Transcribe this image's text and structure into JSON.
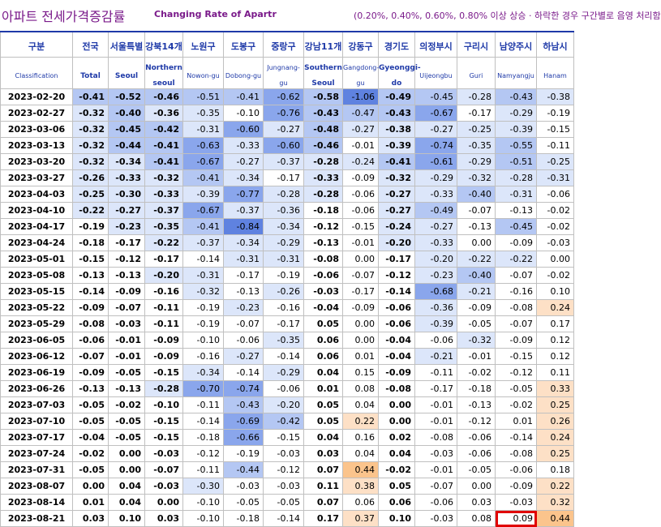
{
  "title": {
    "korean": "아파트 전세가격증감률",
    "english": "Changing Rate of Apartr",
    "note": "(0.20%, 0.40%, 0.60%, 0.80% 이상 상승 · 하락한 경우 구간별로 음영 처리함"
  },
  "header": {
    "row_label_ko": "구분",
    "row_label_en": "Classification",
    "columns": [
      {
        "ko": "전국",
        "en": "Total"
      },
      {
        "ko": "서울특별",
        "en": "Seoul"
      },
      {
        "ko": "강북14개",
        "en": "Northern seoul"
      },
      {
        "ko": "노원구",
        "en": "Nowon-gu"
      },
      {
        "ko": "도봉구",
        "en": "Dobong-gu"
      },
      {
        "ko": "중랑구",
        "en": "Jungnang-gu"
      },
      {
        "ko": "강남11개",
        "en": "Southern Seoul"
      },
      {
        "ko": "강동구",
        "en": "Gangdong-gu"
      },
      {
        "ko": "경기도",
        "en": "Gyeonggi-do"
      },
      {
        "ko": "의정부시",
        "en": "Uijeongbu"
      },
      {
        "ko": "구리시",
        "en": "Guri"
      },
      {
        "ko": "남양주시",
        "en": "Namyangju"
      },
      {
        "ko": "하남시",
        "en": "Hanam"
      }
    ]
  },
  "shading_colors": {
    "neg_080": "#5f82e0",
    "neg_060": "#8aa6ec",
    "neg_040": "#b4c7f3",
    "neg_020": "#dce6fa",
    "pos_020": "#fde0c6",
    "pos_040": "#fbc48c",
    "pos_060": "#f8a050",
    "highlight_border": "#e00000"
  },
  "rows": [
    {
      "date": "2023-02-20",
      "values": [
        "-0.41",
        "-0.52",
        "-0.46",
        "-0.51",
        "-0.41",
        "-0.62",
        "-0.58",
        "-1.06",
        "-0.49",
        "-0.45",
        "-0.28",
        "-0.43",
        "-0.38"
      ]
    },
    {
      "date": "2023-02-27",
      "values": [
        "-0.32",
        "-0.40",
        "-0.36",
        "-0.35",
        "-0.10",
        "-0.76",
        "-0.43",
        "-0.47",
        "-0.43",
        "-0.67",
        "-0.17",
        "-0.29",
        "-0.19"
      ]
    },
    {
      "date": "2023-03-06",
      "values": [
        "-0.32",
        "-0.45",
        "-0.42",
        "-0.31",
        "-0.60",
        "-0.27",
        "-0.48",
        "-0.27",
        "-0.38",
        "-0.27",
        "-0.25",
        "-0.39",
        "-0.15"
      ]
    },
    {
      "date": "2023-03-13",
      "values": [
        "-0.32",
        "-0.44",
        "-0.41",
        "-0.63",
        "-0.33",
        "-0.60",
        "-0.46",
        "-0.01",
        "-0.39",
        "-0.74",
        "-0.35",
        "-0.55",
        "-0.11"
      ]
    },
    {
      "date": "2023-03-20",
      "values": [
        "-0.32",
        "-0.34",
        "-0.41",
        "-0.67",
        "-0.27",
        "-0.37",
        "-0.28",
        "-0.24",
        "-0.41",
        "-0.61",
        "-0.29",
        "-0.51",
        "-0.25"
      ]
    },
    {
      "date": "2023-03-27",
      "values": [
        "-0.26",
        "-0.33",
        "-0.32",
        "-0.41",
        "-0.34",
        "-0.17",
        "-0.33",
        "-0.09",
        "-0.32",
        "-0.29",
        "-0.32",
        "-0.28",
        "-0.31"
      ]
    },
    {
      "date": "2023-04-03",
      "values": [
        "-0.25",
        "-0.30",
        "-0.33",
        "-0.39",
        "-0.77",
        "-0.28",
        "-0.28",
        "-0.06",
        "-0.27",
        "-0.33",
        "-0.40",
        "-0.31",
        "-0.06"
      ]
    },
    {
      "date": "2023-04-10",
      "values": [
        "-0.22",
        "-0.27",
        "-0.37",
        "-0.67",
        "-0.37",
        "-0.36",
        "-0.18",
        "-0.06",
        "-0.27",
        "-0.49",
        "-0.07",
        "-0.13",
        "-0.02"
      ]
    },
    {
      "date": "2023-04-17",
      "values": [
        "-0.19",
        "-0.23",
        "-0.35",
        "-0.41",
        "-0.84",
        "-0.34",
        "-0.12",
        "-0.15",
        "-0.24",
        "-0.27",
        "-0.13",
        "-0.45",
        "-0.02"
      ]
    },
    {
      "date": "2023-04-24",
      "values": [
        "-0.18",
        "-0.17",
        "-0.22",
        "-0.37",
        "-0.34",
        "-0.29",
        "-0.13",
        "-0.01",
        "-0.20",
        "-0.33",
        "0.00",
        "-0.09",
        "-0.03"
      ]
    },
    {
      "date": "2023-05-01",
      "values": [
        "-0.15",
        "-0.12",
        "-0.17",
        "-0.14",
        "-0.31",
        "-0.31",
        "-0.08",
        "0.00",
        "-0.17",
        "-0.20",
        "-0.22",
        "-0.22",
        "0.00"
      ]
    },
    {
      "date": "2023-05-08",
      "values": [
        "-0.13",
        "-0.13",
        "-0.20",
        "-0.31",
        "-0.17",
        "-0.19",
        "-0.06",
        "-0.07",
        "-0.12",
        "-0.23",
        "-0.40",
        "-0.07",
        "-0.02"
      ]
    },
    {
      "date": "2023-05-15",
      "values": [
        "-0.14",
        "-0.09",
        "-0.16",
        "-0.32",
        "-0.13",
        "-0.26",
        "-0.03",
        "-0.17",
        "-0.14",
        "-0.68",
        "-0.21",
        "-0.16",
        "0.10"
      ]
    },
    {
      "date": "2023-05-22",
      "values": [
        "-0.09",
        "-0.07",
        "-0.11",
        "-0.19",
        "-0.23",
        "-0.16",
        "-0.04",
        "-0.09",
        "-0.06",
        "-0.36",
        "-0.09",
        "-0.08",
        "0.24"
      ]
    },
    {
      "date": "2023-05-29",
      "values": [
        "-0.08",
        "-0.03",
        "-0.11",
        "-0.19",
        "-0.07",
        "-0.17",
        "0.05",
        "0.00",
        "-0.06",
        "-0.39",
        "-0.05",
        "-0.07",
        "0.17"
      ]
    },
    {
      "date": "2023-06-05",
      "values": [
        "-0.06",
        "-0.01",
        "-0.09",
        "-0.10",
        "-0.06",
        "-0.35",
        "0.06",
        "0.00",
        "-0.04",
        "-0.06",
        "-0.32",
        "-0.09",
        "0.12"
      ]
    },
    {
      "date": "2023-06-12",
      "values": [
        "-0.07",
        "-0.01",
        "-0.09",
        "-0.16",
        "-0.27",
        "-0.14",
        "0.06",
        "0.01",
        "-0.04",
        "-0.21",
        "-0.01",
        "-0.15",
        "0.12"
      ]
    },
    {
      "date": "2023-06-19",
      "values": [
        "-0.09",
        "-0.05",
        "-0.15",
        "-0.34",
        "-0.14",
        "-0.29",
        "0.04",
        "0.15",
        "-0.09",
        "-0.11",
        "-0.02",
        "-0.12",
        "0.11"
      ]
    },
    {
      "date": "2023-06-26",
      "values": [
        "-0.13",
        "-0.13",
        "-0.28",
        "-0.70",
        "-0.74",
        "-0.06",
        "0.01",
        "0.08",
        "-0.08",
        "-0.17",
        "-0.18",
        "-0.05",
        "0.33"
      ]
    },
    {
      "date": "2023-07-03",
      "values": [
        "-0.05",
        "-0.02",
        "-0.10",
        "-0.11",
        "-0.43",
        "-0.20",
        "0.05",
        "0.04",
        "0.00",
        "-0.01",
        "-0.13",
        "-0.02",
        "0.25"
      ]
    },
    {
      "date": "2023-07-10",
      "values": [
        "-0.05",
        "-0.05",
        "-0.15",
        "-0.14",
        "-0.69",
        "-0.42",
        "0.05",
        "0.22",
        "0.00",
        "-0.01",
        "-0.12",
        "0.01",
        "0.26"
      ]
    },
    {
      "date": "2023-07-17",
      "values": [
        "-0.04",
        "-0.05",
        "-0.15",
        "-0.18",
        "-0.66",
        "-0.15",
        "0.04",
        "0.16",
        "0.02",
        "-0.08",
        "-0.06",
        "-0.14",
        "0.24"
      ]
    },
    {
      "date": "2023-07-24",
      "values": [
        "-0.02",
        "0.00",
        "-0.03",
        "-0.12",
        "-0.19",
        "-0.03",
        "0.03",
        "0.04",
        "0.04",
        "-0.03",
        "-0.06",
        "-0.08",
        "0.25"
      ]
    },
    {
      "date": "2023-07-31",
      "values": [
        "-0.05",
        "0.00",
        "-0.07",
        "-0.11",
        "-0.44",
        "-0.12",
        "0.07",
        "0.44",
        "-0.02",
        "-0.01",
        "-0.05",
        "-0.06",
        "0.18"
      ]
    },
    {
      "date": "2023-08-07",
      "values": [
        "0.00",
        "0.04",
        "-0.03",
        "-0.30",
        "-0.03",
        "-0.03",
        "0.11",
        "0.38",
        "0.05",
        "-0.07",
        "0.00",
        "-0.09",
        "0.22"
      ]
    },
    {
      "date": "2023-08-14",
      "values": [
        "0.01",
        "0.04",
        "0.00",
        "-0.10",
        "-0.05",
        "-0.05",
        "0.07",
        "0.06",
        "0.06",
        "-0.06",
        "0.03",
        "-0.03",
        "0.32"
      ]
    },
    {
      "date": "2023-08-21",
      "values": [
        "0.03",
        "0.10",
        "0.03",
        "-0.10",
        "-0.18",
        "-0.14",
        "0.17",
        "0.37",
        "0.10",
        "-0.03",
        "0.08",
        "0.09",
        "0.44"
      ]
    }
  ],
  "bold_columns": [
    0,
    1,
    2,
    6,
    8
  ],
  "highlighted_cell": {
    "row": 26,
    "col": 11
  }
}
